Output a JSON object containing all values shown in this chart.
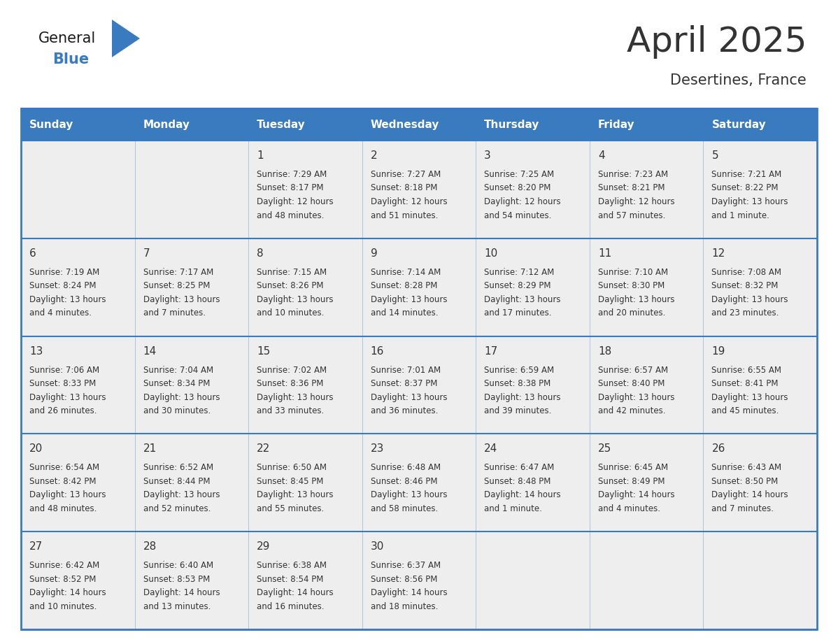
{
  "title": "April 2025",
  "subtitle": "Desertines, France",
  "header_color": "#3a7abf",
  "header_text_color": "#ffffff",
  "cell_bg_color": "#eeeeee",
  "border_color": "#3a7abf",
  "text_color": "#333333",
  "days_of_week": [
    "Sunday",
    "Monday",
    "Tuesday",
    "Wednesday",
    "Thursday",
    "Friday",
    "Saturday"
  ],
  "weeks": [
    [
      {
        "day": "",
        "info": ""
      },
      {
        "day": "",
        "info": ""
      },
      {
        "day": "1",
        "info": "Sunrise: 7:29 AM\nSunset: 8:17 PM\nDaylight: 12 hours\nand 48 minutes."
      },
      {
        "day": "2",
        "info": "Sunrise: 7:27 AM\nSunset: 8:18 PM\nDaylight: 12 hours\nand 51 minutes."
      },
      {
        "day": "3",
        "info": "Sunrise: 7:25 AM\nSunset: 8:20 PM\nDaylight: 12 hours\nand 54 minutes."
      },
      {
        "day": "4",
        "info": "Sunrise: 7:23 AM\nSunset: 8:21 PM\nDaylight: 12 hours\nand 57 minutes."
      },
      {
        "day": "5",
        "info": "Sunrise: 7:21 AM\nSunset: 8:22 PM\nDaylight: 13 hours\nand 1 minute."
      }
    ],
    [
      {
        "day": "6",
        "info": "Sunrise: 7:19 AM\nSunset: 8:24 PM\nDaylight: 13 hours\nand 4 minutes."
      },
      {
        "day": "7",
        "info": "Sunrise: 7:17 AM\nSunset: 8:25 PM\nDaylight: 13 hours\nand 7 minutes."
      },
      {
        "day": "8",
        "info": "Sunrise: 7:15 AM\nSunset: 8:26 PM\nDaylight: 13 hours\nand 10 minutes."
      },
      {
        "day": "9",
        "info": "Sunrise: 7:14 AM\nSunset: 8:28 PM\nDaylight: 13 hours\nand 14 minutes."
      },
      {
        "day": "10",
        "info": "Sunrise: 7:12 AM\nSunset: 8:29 PM\nDaylight: 13 hours\nand 17 minutes."
      },
      {
        "day": "11",
        "info": "Sunrise: 7:10 AM\nSunset: 8:30 PM\nDaylight: 13 hours\nand 20 minutes."
      },
      {
        "day": "12",
        "info": "Sunrise: 7:08 AM\nSunset: 8:32 PM\nDaylight: 13 hours\nand 23 minutes."
      }
    ],
    [
      {
        "day": "13",
        "info": "Sunrise: 7:06 AM\nSunset: 8:33 PM\nDaylight: 13 hours\nand 26 minutes."
      },
      {
        "day": "14",
        "info": "Sunrise: 7:04 AM\nSunset: 8:34 PM\nDaylight: 13 hours\nand 30 minutes."
      },
      {
        "day": "15",
        "info": "Sunrise: 7:02 AM\nSunset: 8:36 PM\nDaylight: 13 hours\nand 33 minutes."
      },
      {
        "day": "16",
        "info": "Sunrise: 7:01 AM\nSunset: 8:37 PM\nDaylight: 13 hours\nand 36 minutes."
      },
      {
        "day": "17",
        "info": "Sunrise: 6:59 AM\nSunset: 8:38 PM\nDaylight: 13 hours\nand 39 minutes."
      },
      {
        "day": "18",
        "info": "Sunrise: 6:57 AM\nSunset: 8:40 PM\nDaylight: 13 hours\nand 42 minutes."
      },
      {
        "day": "19",
        "info": "Sunrise: 6:55 AM\nSunset: 8:41 PM\nDaylight: 13 hours\nand 45 minutes."
      }
    ],
    [
      {
        "day": "20",
        "info": "Sunrise: 6:54 AM\nSunset: 8:42 PM\nDaylight: 13 hours\nand 48 minutes."
      },
      {
        "day": "21",
        "info": "Sunrise: 6:52 AM\nSunset: 8:44 PM\nDaylight: 13 hours\nand 52 minutes."
      },
      {
        "day": "22",
        "info": "Sunrise: 6:50 AM\nSunset: 8:45 PM\nDaylight: 13 hours\nand 55 minutes."
      },
      {
        "day": "23",
        "info": "Sunrise: 6:48 AM\nSunset: 8:46 PM\nDaylight: 13 hours\nand 58 minutes."
      },
      {
        "day": "24",
        "info": "Sunrise: 6:47 AM\nSunset: 8:48 PM\nDaylight: 14 hours\nand 1 minute."
      },
      {
        "day": "25",
        "info": "Sunrise: 6:45 AM\nSunset: 8:49 PM\nDaylight: 14 hours\nand 4 minutes."
      },
      {
        "day": "26",
        "info": "Sunrise: 6:43 AM\nSunset: 8:50 PM\nDaylight: 14 hours\nand 7 minutes."
      }
    ],
    [
      {
        "day": "27",
        "info": "Sunrise: 6:42 AM\nSunset: 8:52 PM\nDaylight: 14 hours\nand 10 minutes."
      },
      {
        "day": "28",
        "info": "Sunrise: 6:40 AM\nSunset: 8:53 PM\nDaylight: 14 hours\nand 13 minutes."
      },
      {
        "day": "29",
        "info": "Sunrise: 6:38 AM\nSunset: 8:54 PM\nDaylight: 14 hours\nand 16 minutes."
      },
      {
        "day": "30",
        "info": "Sunrise: 6:37 AM\nSunset: 8:56 PM\nDaylight: 14 hours\nand 18 minutes."
      },
      {
        "day": "",
        "info": ""
      },
      {
        "day": "",
        "info": ""
      },
      {
        "day": "",
        "info": ""
      }
    ]
  ],
  "logo_general_color": "#1a1a1a",
  "logo_blue_color": "#3a7abf",
  "figure_bg": "#ffffff",
  "title_fontsize": 36,
  "subtitle_fontsize": 15,
  "header_fontsize": 11,
  "day_num_fontsize": 11,
  "info_fontsize": 8.5
}
